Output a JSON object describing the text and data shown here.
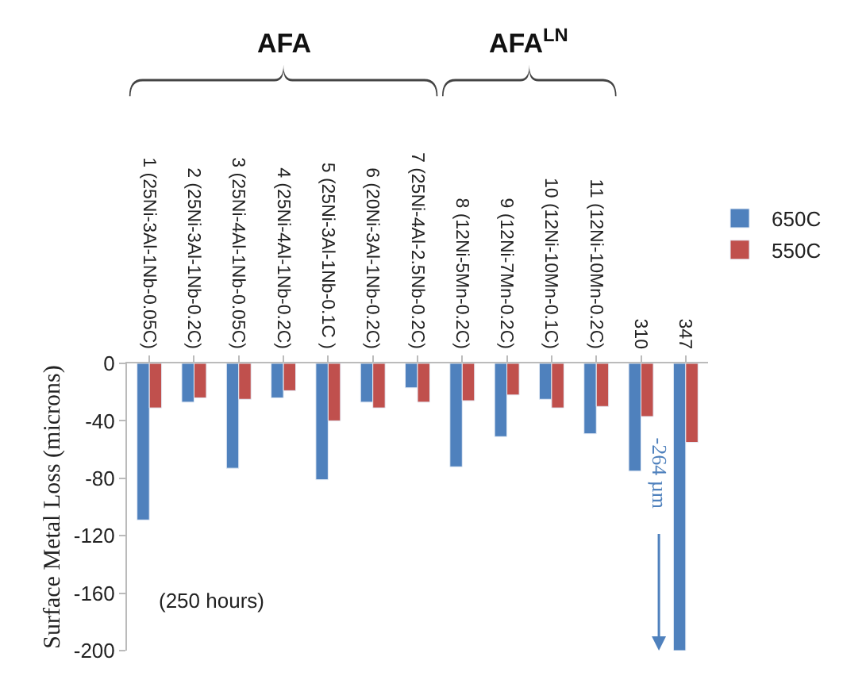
{
  "chart_data": {
    "type": "bar",
    "categories": [
      "1 (25Ni-3Al-1Nb-0.05C)",
      "2 (25Ni-3Al-1Nb-0.2C)",
      "3 (25Ni-4Al-1Nb-0.05C)",
      "4 (25Ni-4Al-1Nb-0.2C)",
      "5 (25Ni-3Al-1Nb-0.1C )",
      "6 (20Ni-3Al-1Nb-0.2C)",
      "7 (25Ni-4Al-2.5Nb-0.2C)",
      "8 (12Ni-5Mn-0.2C)",
      "9 (12Ni-7Mn-0.2C)",
      "10 (12Ni-10Mn-0.1C)",
      "11 (12Ni-10Mn-0.2C)",
      "310",
      "347"
    ],
    "series": [
      {
        "name": "650C",
        "color": "#4f81bd",
        "values": [
          -109,
          -27,
          -73,
          -24,
          -81,
          -27,
          -17,
          -72,
          -51,
          -25,
          -49,
          -75,
          -200
        ]
      },
      {
        "name": "550C",
        "color": "#c0504d",
        "values": [
          -31,
          -24,
          -25,
          -19,
          -40,
          -31,
          -27,
          -26,
          -22,
          -31,
          -30,
          -37,
          -55
        ]
      }
    ],
    "ylabel": "Surface Metal Loss (microns)",
    "ylim": [
      -200,
      0
    ],
    "yticks": [
      -200,
      -160,
      -120,
      -80,
      -40,
      0
    ],
    "legend": "top right",
    "annotations": [
      "AFA",
      "AFA$^{LN}$",
      "(250 hours)",
      "-264 µm"
    ]
  }
}
